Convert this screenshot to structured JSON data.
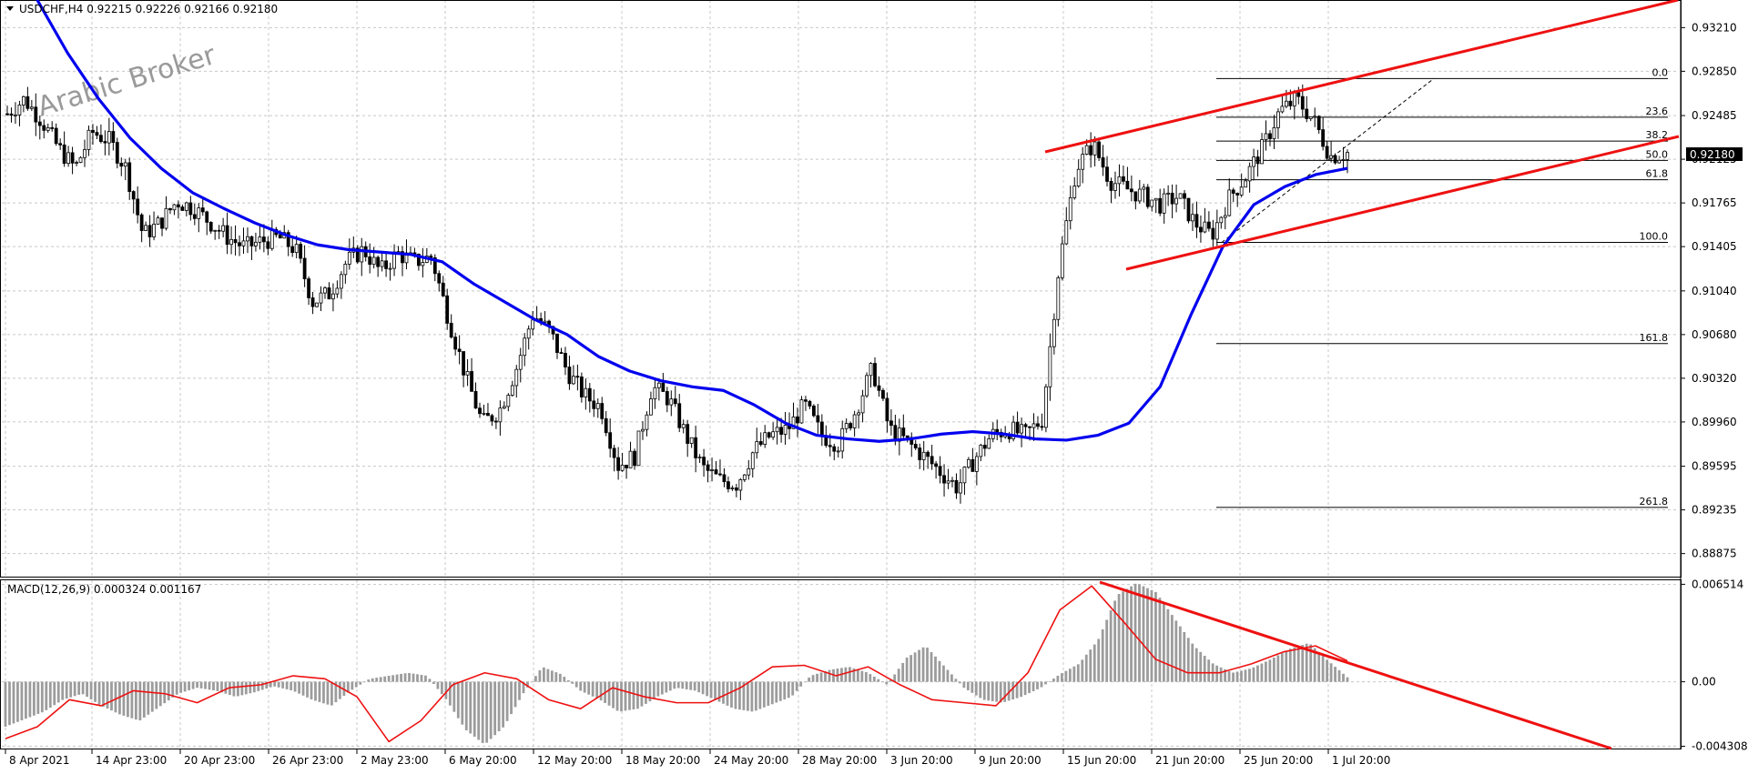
{
  "header": {
    "symbol_info": "USDCHF,H4  0.92215 0.92226 0.92166 0.92180",
    "watermark": "Arabic Broker"
  },
  "colors": {
    "ma": "#0000ee",
    "trendline": "#ee1111",
    "candle": "#000000",
    "macd_hist": "#9c9c9c",
    "macd_signal": "#ee1111",
    "grid": "#c8c8c8",
    "price_tag_bg": "#000000",
    "price_tag_text": "#ffffff"
  },
  "chart_data": [
    {
      "type": "candlestick",
      "title": "USDCHF,H4",
      "quote": {
        "open": 0.92215,
        "high": 0.92226,
        "low": 0.92166,
        "close": 0.9218
      },
      "current_price": "0.92180",
      "ylim": [
        0.887,
        0.934
      ],
      "y_ticks": [
        "0.93210",
        "0.92850",
        "0.92485",
        "0.92125",
        "0.91765",
        "0.91405",
        "0.91040",
        "0.90680",
        "0.90320",
        "0.89960",
        "0.89595",
        "0.89235",
        "0.88875"
      ],
      "x_ticks": [
        "8 Apr 2021",
        "14 Apr 23:00",
        "20 Apr 23:00",
        "26 Apr 23:00",
        "2 May 23:00",
        "6 May 20:00",
        "12 May 20:00",
        "18 May 20:00",
        "24 May 20:00",
        "28 May 20:00",
        "3 Jun 20:00",
        "9 Jun 20:00",
        "15 Jun 20:00",
        "21 Jun 20:00",
        "25 Jun 20:00",
        "1 Jul 20:00"
      ],
      "price_path": [
        0.925,
        0.9262,
        0.9245,
        0.9222,
        0.9205,
        0.9235,
        0.9228,
        0.9205,
        0.915,
        0.916,
        0.9178,
        0.9172,
        0.916,
        0.9148,
        0.914,
        0.9145,
        0.9148,
        0.9138,
        0.9095,
        0.9102,
        0.9128,
        0.9138,
        0.912,
        0.9135,
        0.9128,
        0.9132,
        0.9082,
        0.9035,
        0.8995,
        0.9005,
        0.904,
        0.9085,
        0.907,
        0.9038,
        0.9018,
        0.9008,
        0.896,
        0.8968,
        0.9025,
        0.9015,
        0.8985,
        0.8958,
        0.8948,
        0.8945,
        0.8972,
        0.8985,
        0.899,
        0.901,
        0.8985,
        0.8978,
        0.9005,
        0.904,
        0.899,
        0.898,
        0.8968,
        0.8955,
        0.8942,
        0.8965,
        0.8985,
        0.899,
        0.8985,
        0.8998,
        0.9125,
        0.9205,
        0.9225,
        0.9195,
        0.9188,
        0.9182,
        0.9175,
        0.9182,
        0.916,
        0.915,
        0.918,
        0.9198,
        0.9222,
        0.9252,
        0.9262,
        0.9245,
        0.9215,
        0.9218
      ],
      "moving_average": {
        "color": "#0000ee",
        "values": [
          0.9345,
          0.93,
          0.9262,
          0.923,
          0.9205,
          0.9185,
          0.9172,
          0.916,
          0.915,
          0.9142,
          0.9138,
          0.9136,
          0.9134,
          0.9128,
          0.911,
          0.9095,
          0.908,
          0.9068,
          0.905,
          0.9038,
          0.903,
          0.9025,
          0.9022,
          0.901,
          0.8995,
          0.8985,
          0.8982,
          0.898,
          0.8982,
          0.8986,
          0.8988,
          0.8986,
          0.8982,
          0.8981,
          0.8985,
          0.8995,
          0.9025,
          0.9085,
          0.914,
          0.9175,
          0.919,
          0.92,
          0.9205
        ]
      },
      "fibonacci": {
        "high": 0.9279,
        "low": 0.9144,
        "levels": [
          "0.0",
          "23.6",
          "38.2",
          "50.0",
          "61.8",
          "100.0",
          "161.8",
          "261.8"
        ]
      },
      "trendlines": [
        {
          "name": "channel-upper",
          "from": [
            0.0,
            0.92
          ],
          "to": [
            1.0,
            0.9242
          ]
        },
        {
          "name": "channel-lower",
          "from": [
            0.0,
            0.909
          ],
          "to": [
            1.0,
            0.922
          ]
        },
        {
          "name": "fib-base",
          "from": [
            0.0,
            0.9144
          ],
          "to": [
            1.0,
            0.9279
          ]
        }
      ]
    },
    {
      "type": "histogram",
      "title": "MACD(12,26,9) 0.000324 0.001167",
      "indicator": "MACD(12,26,9)",
      "values_label": "0.000324 0.001167",
      "ylim": [
        -0.0044,
        0.0066
      ],
      "y_ticks": [
        "0.006514",
        "0.00",
        "-0.004308"
      ],
      "histogram": [
        -0.003,
        -0.0025,
        -0.002,
        -0.0012,
        -0.0008,
        -0.0016,
        -0.0022,
        -0.0026,
        -0.0017,
        -0.0008,
        -0.0004,
        -0.0006,
        -0.001,
        -0.0007,
        -0.0003,
        -0.0006,
        -0.0012,
        -0.0016,
        -0.0006,
        0.0002,
        0.0004,
        0.0006,
        0.0004,
        -0.0012,
        -0.0032,
        -0.0042,
        -0.003,
        -0.0008,
        0.001,
        0.0005,
        -0.0006,
        -0.0012,
        -0.002,
        -0.0018,
        -0.001,
        -0.0004,
        -0.0006,
        -0.0012,
        -0.0018,
        -0.002,
        -0.0015,
        -0.001,
        0.0004,
        0.0008,
        0.001,
        0.0006,
        -0.0002,
        0.0016,
        0.0024,
        0.001,
        -0.0004,
        -0.0012,
        -0.0014,
        -0.001,
        -0.0004,
        0.0005,
        0.0012,
        0.0028,
        0.0058,
        0.0066,
        0.006,
        0.0042,
        0.0024,
        0.0012,
        0.0006,
        0.0009,
        0.0015,
        0.0022,
        0.0026,
        0.0014,
        0.0003
      ],
      "signal": [
        -0.0038,
        -0.003,
        -0.0012,
        -0.0016,
        -0.0006,
        -0.0008,
        -0.0014,
        -0.0004,
        -0.0002,
        0.0004,
        0.0002,
        -0.001,
        -0.004,
        -0.0026,
        -0.0002,
        0.0006,
        0.0002,
        -0.0012,
        -0.0018,
        -0.0004,
        -0.001,
        -0.0014,
        -0.0014,
        -0.0004,
        0.001,
        0.0011,
        0.0004,
        0.001,
        -0.0002,
        -0.0012,
        -0.0014,
        -0.0016,
        0.0006,
        0.0048,
        0.0064,
        0.004,
        0.0015,
        0.0006,
        0.0006,
        0.0012,
        0.002,
        0.0024,
        0.0014
      ],
      "trendline": {
        "from": [
          0.0,
          0.0068
        ],
        "to": [
          1.0,
          -0.0045
        ]
      }
    }
  ]
}
